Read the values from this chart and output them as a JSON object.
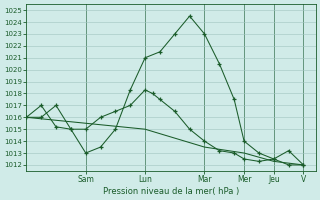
{
  "xlabel": "Pression niveau de la mer( hPa )",
  "background_color": "#d0ebe8",
  "grid_color": "#a0c4c0",
  "line_color": "#1a5c2a",
  "ylim_min": 1011.5,
  "ylim_max": 1025.5,
  "ytick_min": 1012,
  "ytick_max": 1025,
  "xlim_min": 0,
  "xlim_max": 13,
  "day_labels": [
    "Sam",
    "Lun",
    "Mar",
    "Mer",
    "Jeu",
    "V"
  ],
  "day_positions": [
    2.667,
    5.333,
    8.0,
    9.778,
    11.111,
    12.444
  ],
  "vline_positions": [
    2.667,
    5.333,
    8.0,
    9.778,
    11.111,
    12.444
  ],
  "line1_x": [
    0,
    0.667,
    1.333,
    2.0,
    2.667,
    3.333,
    4.0,
    4.667,
    5.333,
    6.0,
    6.667,
    7.333,
    8.0,
    8.667,
    9.333,
    9.778,
    10.444,
    11.111,
    11.778,
    12.444
  ],
  "line1_y": [
    1016,
    1016,
    1017,
    1015,
    1013,
    1013.5,
    1015,
    1018.3,
    1021,
    1021.5,
    1023,
    1024.5,
    1023,
    1020.5,
    1017.5,
    1014,
    1013,
    1012.5,
    1012,
    1012
  ],
  "line2_x": [
    0,
    0.667,
    1.333,
    2.0,
    2.667,
    3.333,
    4.0,
    4.667,
    5.333,
    5.667,
    6.0,
    6.667,
    7.333,
    8.0,
    8.667,
    9.333,
    9.778,
    10.444,
    11.111,
    11.778,
    12.444
  ],
  "line2_y": [
    1016,
    1017,
    1015.2,
    1015,
    1015,
    1016,
    1016.5,
    1017,
    1018.3,
    1018,
    1017.5,
    1016.5,
    1015,
    1014,
    1013.2,
    1013,
    1012.5,
    1012.3,
    1012.5,
    1013.2,
    1012
  ],
  "line3_x": [
    0,
    2.667,
    5.333,
    8.0,
    9.778,
    11.111,
    12.444
  ],
  "line3_y": [
    1016,
    1015.5,
    1015,
    1013.5,
    1013,
    1012.3,
    1012
  ]
}
